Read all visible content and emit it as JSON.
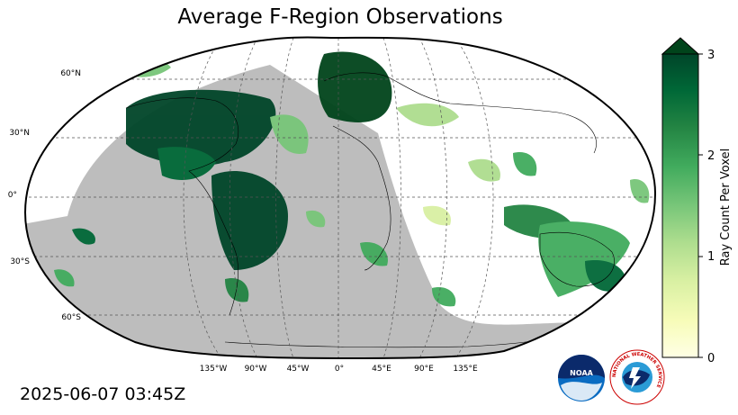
{
  "title": "Average F-Region Observations",
  "timestamp": "2025-06-07 03:45Z",
  "projection": "robinson",
  "lat_labels": [
    "60°N",
    "30°N",
    "0°",
    "30°S",
    "60°S"
  ],
  "lon_labels": [
    "135°W",
    "90°W",
    "45°W",
    "0°",
    "45°E",
    "90°E",
    "135°E"
  ],
  "colorbar": {
    "label": "Ray Count Per Voxel",
    "min": 0,
    "max": 3,
    "ticks": [
      "0",
      "1",
      "2",
      "3"
    ],
    "extend": "max",
    "colors": [
      "#ffffe5",
      "#f7fcb9",
      "#d9f0a3",
      "#addd8e",
      "#78c679",
      "#41ab5d",
      "#238443",
      "#006837",
      "#004529"
    ]
  },
  "night_shading_color": "#bdbdbd",
  "logos": {
    "noaa": "NOAA",
    "nws": "NATIONAL WEATHER SERVICE"
  }
}
